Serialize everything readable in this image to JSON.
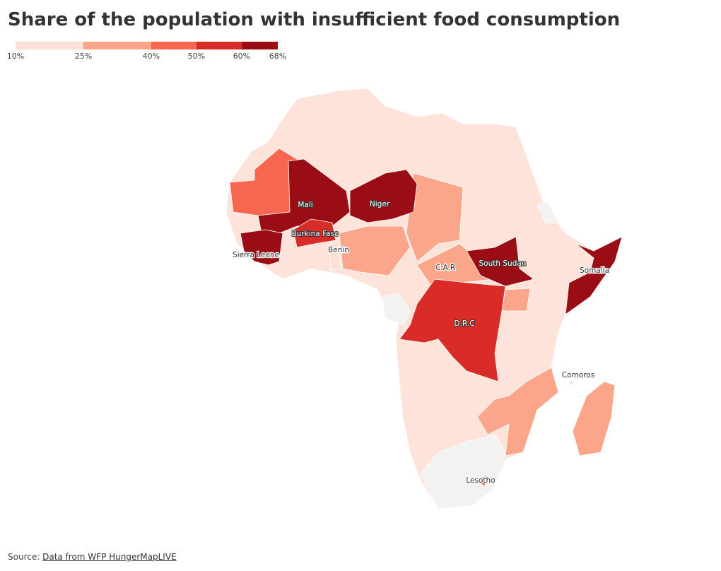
{
  "title": "Share of the population with insufficient food consumption",
  "legend": {
    "ticks": [
      {
        "value": 10,
        "label": "10%"
      },
      {
        "value": 25,
        "label": "25%"
      },
      {
        "value": 40,
        "label": "40%"
      },
      {
        "value": 50,
        "label": "50%"
      },
      {
        "value": 60,
        "label": "60%"
      },
      {
        "value": 68,
        "label": "68%"
      }
    ],
    "colors": [
      "#fde0d6",
      "#fba58a",
      "#f7674f",
      "#d92b27",
      "#9b0d14"
    ]
  },
  "map": {
    "regions": [
      {
        "name": "Mali",
        "color": "#9b0d14"
      },
      {
        "name": "Niger",
        "color": "#9b0d14"
      },
      {
        "name": "Burkina Faso",
        "color": "#d92b27"
      },
      {
        "name": "Sierra Leone",
        "color": "#9b0d14"
      },
      {
        "name": "Benin",
        "color": "#fde0d6"
      },
      {
        "name": "C.A.R",
        "color": "#fba58a"
      },
      {
        "name": "South Sudan",
        "color": "#9b0d14"
      },
      {
        "name": "Somalia",
        "color": "#9b0d14"
      },
      {
        "name": "D.R.C",
        "color": "#d92b27"
      },
      {
        "name": "Comoros",
        "color": "#fde0d6"
      },
      {
        "name": "Lesotho",
        "color": "#f7674f"
      }
    ]
  },
  "source": {
    "label": "Source:",
    "link": "Data from WFP HungerMapLIVE"
  }
}
